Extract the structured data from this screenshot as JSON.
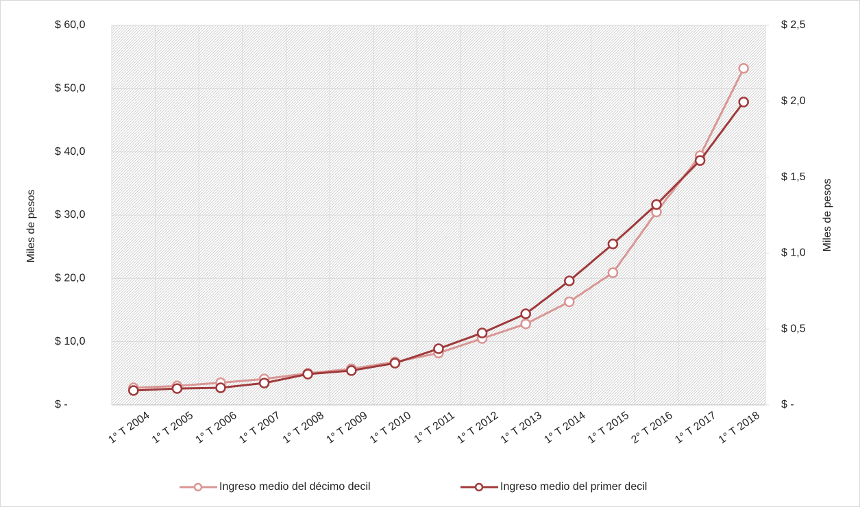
{
  "chart_data": {
    "type": "line",
    "categories": [
      "1° T 2004",
      "1° T 2005",
      "1° T 2006",
      "1° T 2007",
      "1° T 2008",
      "1° T 2009",
      "1° T 2010",
      "1° T 2011",
      "1° T 2012",
      "1° T 2013",
      "1° T 2014",
      "1° T 2015",
      "2° T 2016",
      "1° T 2017",
      "1° T 2018"
    ],
    "series": [
      {
        "name": "Ingreso medio  del décimo decil",
        "color": "#d99694",
        "values": [
          2.7,
          3.0,
          3.5,
          4.1,
          5.0,
          5.7,
          6.8,
          8.2,
          10.5,
          12.8,
          16.3,
          20.9,
          30.5,
          39.4,
          53.2
        ]
      },
      {
        "name": "Ingreso medio del primer decil",
        "color": "#a0393a",
        "axis": "y2",
        "values": [
          0.095,
          0.108,
          0.113,
          0.144,
          0.203,
          0.226,
          0.275,
          0.37,
          0.474,
          0.6,
          0.817,
          1.06,
          1.32,
          1.61,
          1.995
        ]
      }
    ],
    "ylabel": "Miles de pesos",
    "y2label": "Miles de pesos",
    "ylim": [
      0,
      60
    ],
    "yticks": [
      {
        "value": 0,
        "label": "$ -"
      },
      {
        "value": 10,
        "label": "$ 10,0"
      },
      {
        "value": 20,
        "label": "$ 20,0"
      },
      {
        "value": 30,
        "label": "$ 30,0"
      },
      {
        "value": 40,
        "label": "$ 40,0"
      },
      {
        "value": 50,
        "label": "$ 50,0"
      },
      {
        "value": 60,
        "label": "$ 60,0"
      }
    ],
    "y2lim": [
      0,
      2.5
    ],
    "y2ticks": [
      {
        "value": 0,
        "label": "$ -"
      },
      {
        "value": 0.5,
        "label": "$ 0,5"
      },
      {
        "value": 1,
        "label": "$ 1,0"
      },
      {
        "value": 1.5,
        "label": "$ 1,5"
      },
      {
        "value": 2,
        "label": "$ 2,0"
      },
      {
        "value": 2.5,
        "label": "$ 2,5"
      }
    ],
    "grid": true,
    "legend": "bottom"
  }
}
